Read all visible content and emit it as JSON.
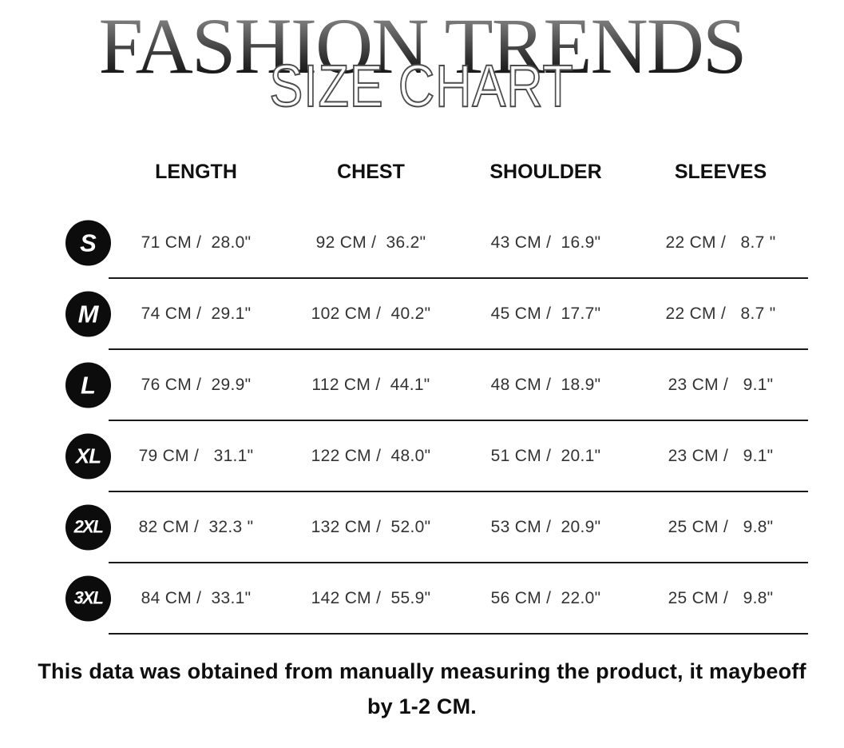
{
  "header": {
    "brand": "FASHION TRENDS",
    "subtitle": "SIZE CHART"
  },
  "table": {
    "headers": [
      "LENGTH",
      "CHEST",
      "SHOULDER",
      "SLEEVES"
    ],
    "rows": [
      {
        "size": "S",
        "values": [
          "71 CM /  28.0\"",
          "92 CM /  36.2\"",
          "43 CM /  16.9\"",
          "22 CM /   8.7 \""
        ]
      },
      {
        "size": "M",
        "values": [
          "74 CM /  29.1\"",
          "102 CM /  40.2\"",
          "45 CM /  17.7\"",
          "22 CM /   8.7 \""
        ]
      },
      {
        "size": "L",
        "values": [
          "76 CM /  29.9\"",
          "112 CM /  44.1\"",
          "48 CM /  18.9\"",
          "23 CM /   9.1\""
        ]
      },
      {
        "size": "XL",
        "values": [
          "79 CM /   31.1\"",
          "122 CM /  48.0\"",
          "51 CM /  20.1\"",
          "23 CM /   9.1\""
        ]
      },
      {
        "size": "2XL",
        "values": [
          "82 CM /  32.3 \"",
          "132 CM /  52.0\"",
          "53 CM /  20.9\"",
          "25 CM /   9.8\""
        ]
      },
      {
        "size": "3XL",
        "values": [
          "84 CM /  33.1\"",
          "142 CM /  55.9\"",
          "56 CM /  22.0\"",
          "25 CM /   9.8\""
        ]
      }
    ]
  },
  "footer": {
    "line1": "This data was obtained from manually measuring the product, it maybeoff",
    "line2": "by 1-2 CM."
  },
  "colors": {
    "badge": "#0c0c0c",
    "divider": "#1a1a1a",
    "value_text": "#333333",
    "header_text": "#101010",
    "title_gradient_top": "#a0a0a0",
    "title_gradient_bottom": "#000000",
    "subtitle_fill": "#ffffff",
    "subtitle_outline": "#4c4c4c"
  }
}
